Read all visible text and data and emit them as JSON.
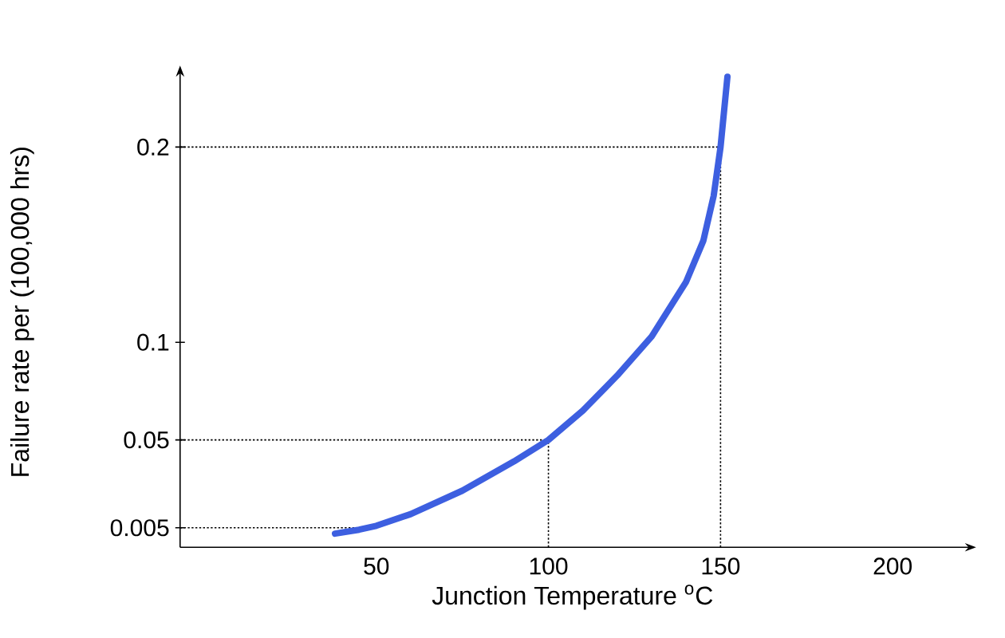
{
  "chart_data": {
    "type": "line",
    "xlabel": "Junction Temperature $^{o}$C",
    "ylabel": "Failure rate per (100,000 hrs)",
    "x": [
      38,
      45,
      50,
      60,
      75,
      90,
      100,
      110,
      120,
      130,
      140,
      145,
      148,
      150,
      152
    ],
    "series": [
      {
        "color": "#3d5fe0",
        "values": [
          0.002,
          0.004,
          0.006,
          0.012,
          0.024,
          0.039,
          0.05,
          0.065,
          0.083,
          0.103,
          0.131,
          0.152,
          0.175,
          0.2,
          0.236
        ]
      }
    ],
    "xlim": [
      -7,
      221
    ],
    "ylim": [
      -0.005,
      0.236
    ],
    "xticks": [
      50,
      100,
      150,
      200
    ],
    "yticks": [
      0.005,
      0.05,
      0.1,
      0.2
    ],
    "ref_lines": [
      {
        "axis": "y",
        "value": 0.2,
        "line_style": "dotted"
      },
      {
        "axis": "y",
        "value": 0.05,
        "line_style": "dotted"
      },
      {
        "axis": "y",
        "value": 0.005,
        "line_style": "dotted"
      },
      {
        "axis": "x",
        "value": 100,
        "line_style": "dotted"
      },
      {
        "axis": "x",
        "value": 150,
        "line_style": "dotted"
      }
    ],
    "grid": false,
    "marker": "none",
    "line_style": "solid"
  }
}
